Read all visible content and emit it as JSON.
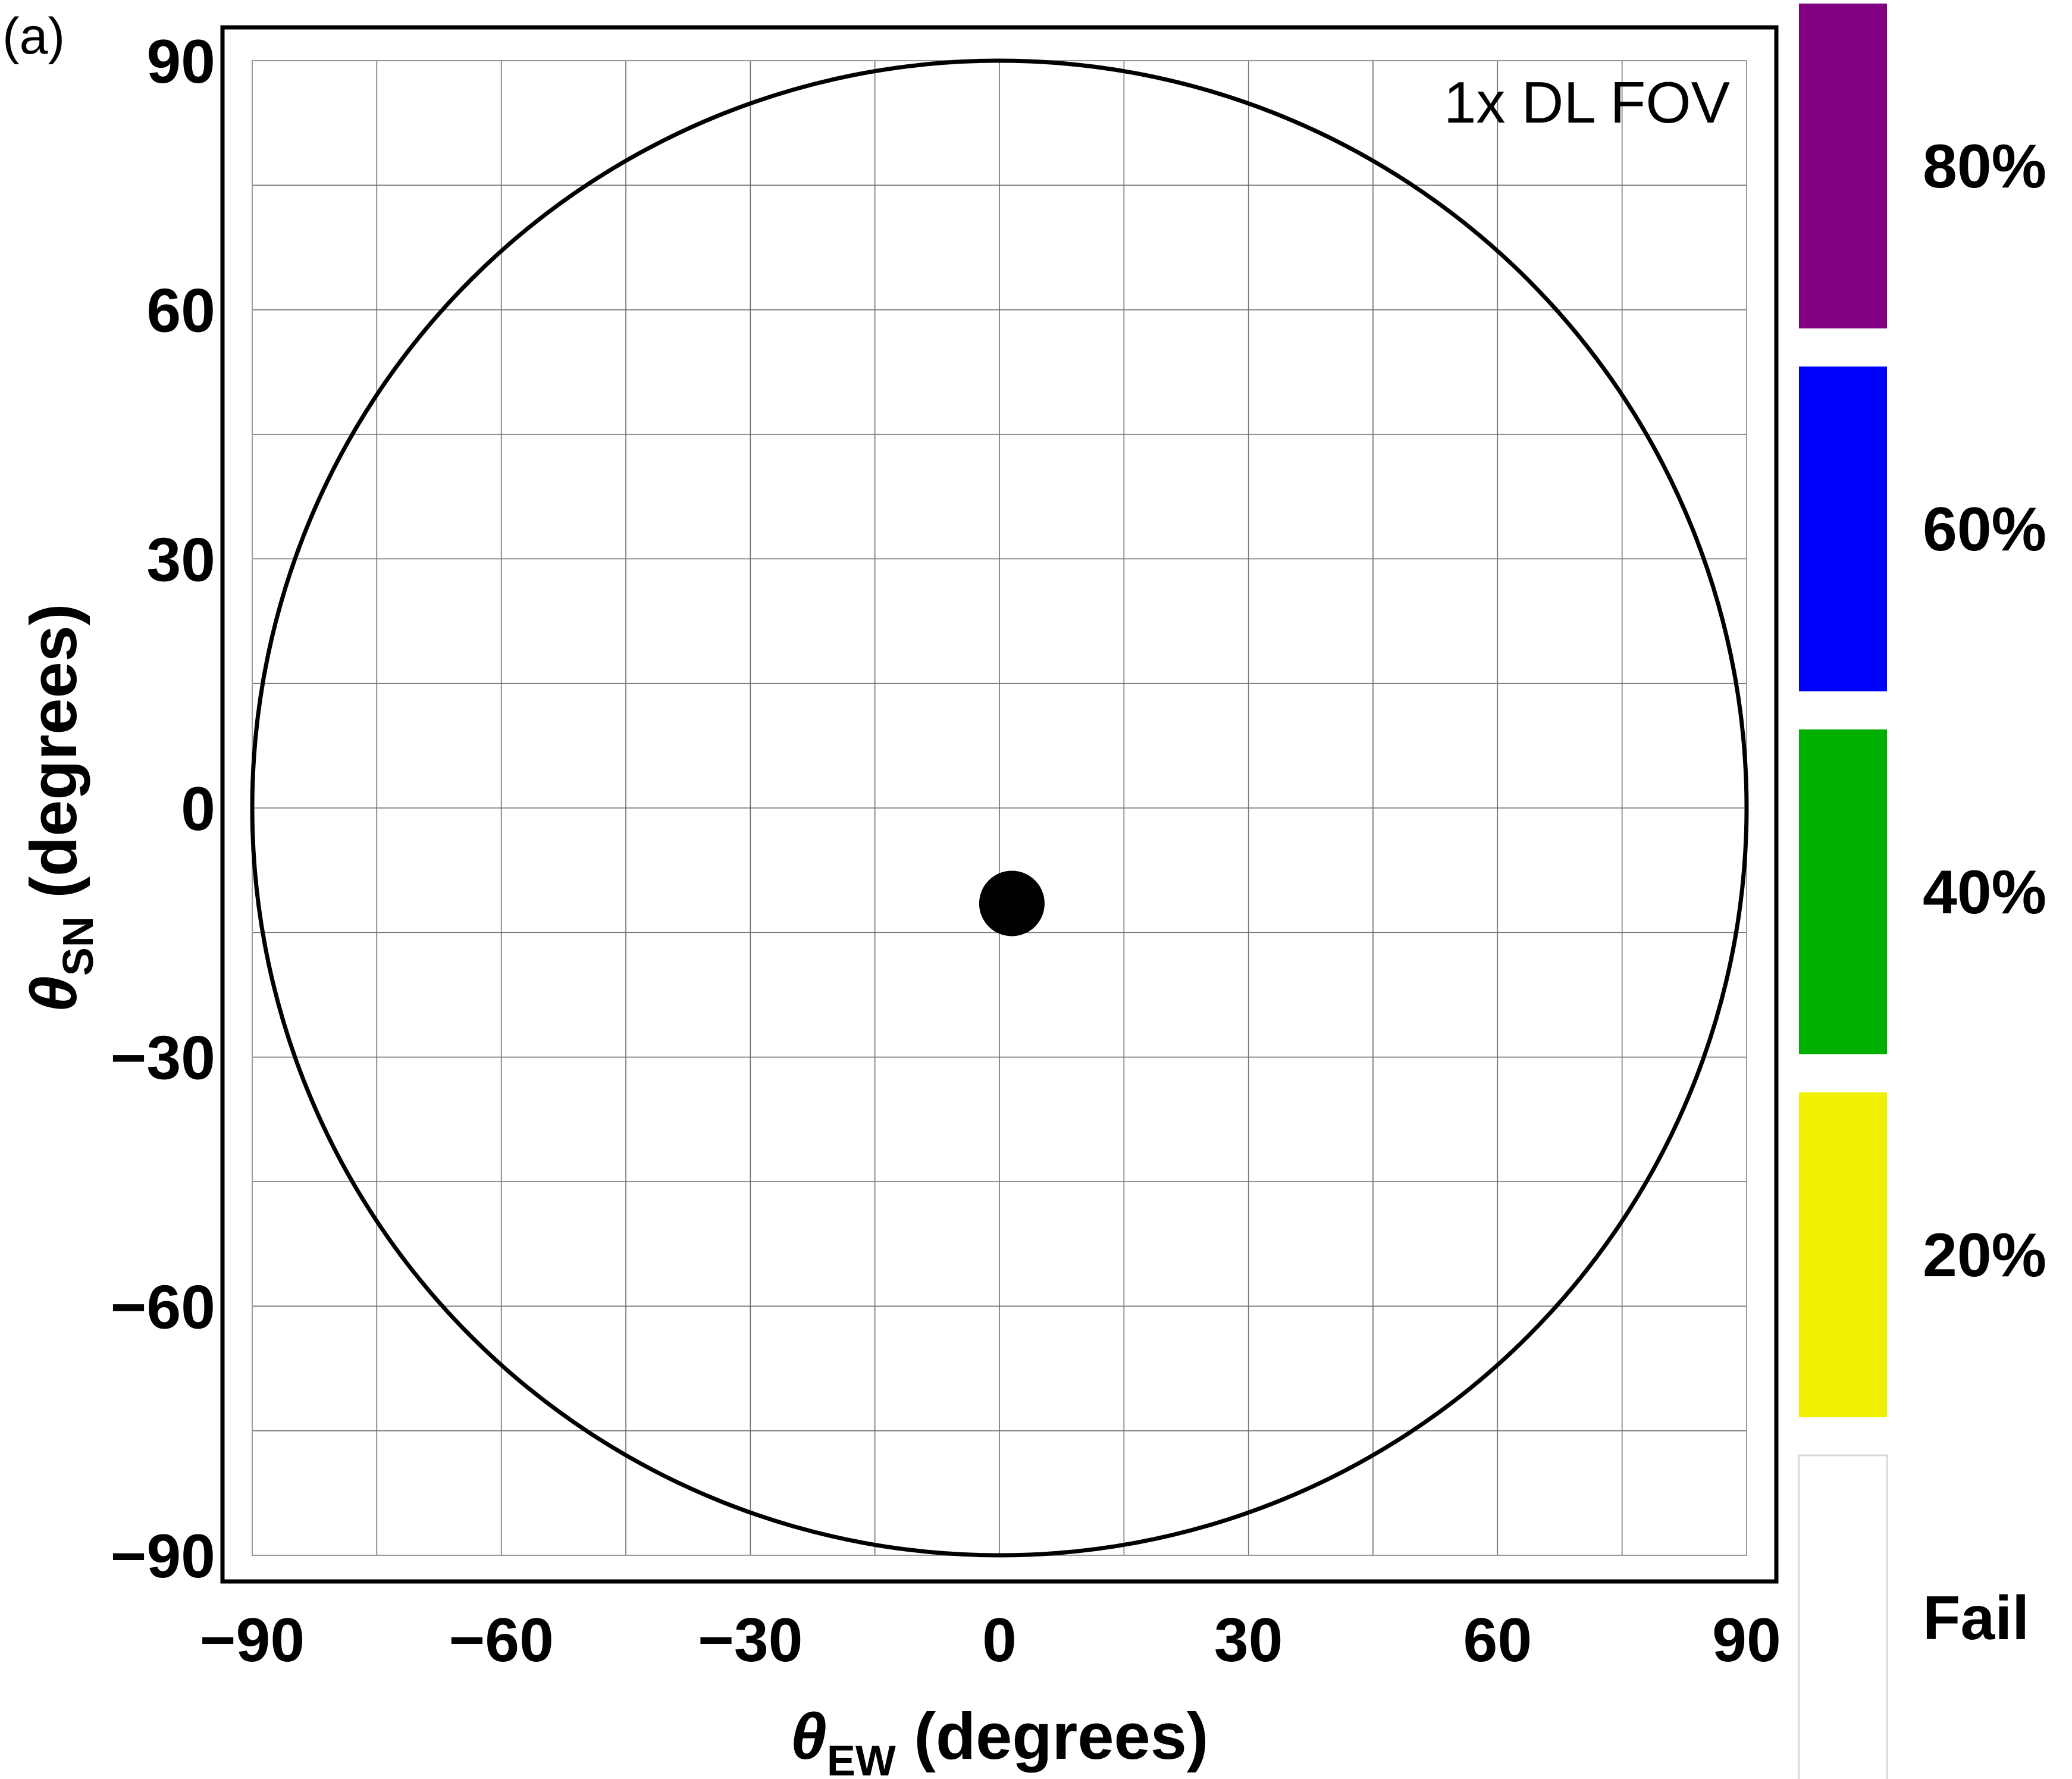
{
  "panel_label": "(a)",
  "chart_data": {
    "type": "scatter",
    "annotation": "1x DL FOV",
    "xlabel": {
      "symbol": "θ",
      "subscript": "EW",
      "text": " (degrees)"
    },
    "ylabel": {
      "symbol": "θ",
      "subscript": "SN",
      "text": " (degrees)"
    },
    "xlim": [
      -90,
      90
    ],
    "ylim": [
      -90,
      90
    ],
    "x_ticks": [
      -90,
      -60,
      -30,
      0,
      30,
      60,
      90
    ],
    "y_ticks": [
      -90,
      -60,
      -30,
      0,
      30,
      60,
      90
    ],
    "x_tick_labels": [
      "−90",
      "−60",
      "−30",
      "0",
      "30",
      "60",
      "90"
    ],
    "y_tick_labels": [
      "−90",
      "−60",
      "−30",
      "0",
      "30",
      "60",
      "90"
    ],
    "grid": true,
    "grid_step": 15,
    "boundary_circle_radius": 90,
    "points": [
      {
        "x": 1.5,
        "y": -11.5
      }
    ],
    "legend": {
      "placement": "right",
      "items": [
        {
          "label": "80%",
          "color": "#800080"
        },
        {
          "label": "60%",
          "color": "#0000ff"
        },
        {
          "label": "40%",
          "color": "#00b000"
        },
        {
          "label": "20%",
          "color": "#f0f000"
        },
        {
          "label": "Fail",
          "color": "#ffffff"
        }
      ]
    }
  }
}
